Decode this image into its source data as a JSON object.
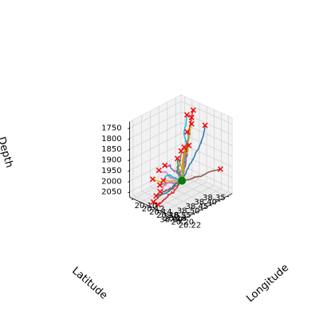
{
  "chart_data": {
    "type": "line3d",
    "xlabel": "Longitude",
    "ylabel": "Latitude",
    "zlabel": "Depth",
    "xticks": [
      "20.10",
      "20.12",
      "20.14",
      "20.16",
      "20.18",
      "20.20",
      "20.22"
    ],
    "yticks": [
      "38.35",
      "38.40",
      "38.45",
      "38.50",
      "38.55",
      "38.60"
    ],
    "zticks": [
      "1750",
      "1800",
      "1850",
      "1900",
      "1950",
      "2000",
      "2050"
    ],
    "xlim": [
      20.09,
      20.23
    ],
    "ylim": [
      38.32,
      38.62
    ],
    "zlim": [
      1720,
      2075
    ],
    "z_inverted": true,
    "grid": true,
    "start_point": {
      "x": 20.165,
      "y": 38.475,
      "z": 2000,
      "color": "#008000",
      "marker": "circle"
    },
    "end_marker": {
      "color": "#ff0000",
      "marker": "x"
    },
    "series": [
      {
        "color": "#1f77b4",
        "end": {
          "x": 20.172,
          "y": 38.355,
          "z": 1785
        }
      },
      {
        "color": "#ff7f0e",
        "end": {
          "x": 20.148,
          "y": 38.398,
          "z": 1880
        }
      },
      {
        "color": "#2ca02c",
        "end": {
          "x": 20.121,
          "y": 38.325,
          "z": 1800
        }
      },
      {
        "color": "#d62728",
        "end": {
          "x": 20.128,
          "y": 38.33,
          "z": 1758
        }
      },
      {
        "color": "#9467bd",
        "end": {
          "x": 20.137,
          "y": 38.385,
          "z": 1830
        }
      },
      {
        "color": "#8c564b",
        "end": {
          "x": 20.225,
          "y": 38.378,
          "z": 1940
        }
      },
      {
        "color": "#e377c2",
        "end": {
          "x": 20.123,
          "y": 38.52,
          "z": 1965
        }
      },
      {
        "color": "#7f7f7f",
        "end": {
          "x": 20.142,
          "y": 38.555,
          "z": 2005
        }
      },
      {
        "color": "#bcbd22",
        "end": {
          "x": 20.133,
          "y": 38.35,
          "z": 1810
        }
      },
      {
        "color": "#17becf",
        "end": {
          "x": 20.125,
          "y": 38.36,
          "z": 1770
        }
      },
      {
        "color": "#1f77b4",
        "end": {
          "x": 20.146,
          "y": 38.585,
          "z": 2040
        }
      },
      {
        "color": "#ff7f0e",
        "end": {
          "x": 20.149,
          "y": 38.428,
          "z": 1875
        }
      },
      {
        "color": "#d62728",
        "end": {
          "x": 20.158,
          "y": 38.6,
          "z": 2065
        }
      },
      {
        "color": "#2ca02c",
        "end": {
          "x": 20.141,
          "y": 38.45,
          "z": 1925
        }
      },
      {
        "color": "#9467bd",
        "end": {
          "x": 20.13,
          "y": 38.5,
          "z": 1945
        }
      },
      {
        "color": "#bcbd22",
        "end": {
          "x": 20.127,
          "y": 38.565,
          "z": 1985
        }
      },
      {
        "color": "#17becf",
        "end": {
          "x": 20.14,
          "y": 38.53,
          "z": 1995
        }
      },
      {
        "color": "#e377c2",
        "end": {
          "x": 20.152,
          "y": 38.575,
          "z": 2020
        }
      },
      {
        "color": "#8c564b",
        "end": {
          "x": 20.15,
          "y": 38.61,
          "z": 2055
        }
      },
      {
        "color": "#7f7f7f",
        "end": {
          "x": 20.137,
          "y": 38.42,
          "z": 1905
        }
      }
    ]
  }
}
